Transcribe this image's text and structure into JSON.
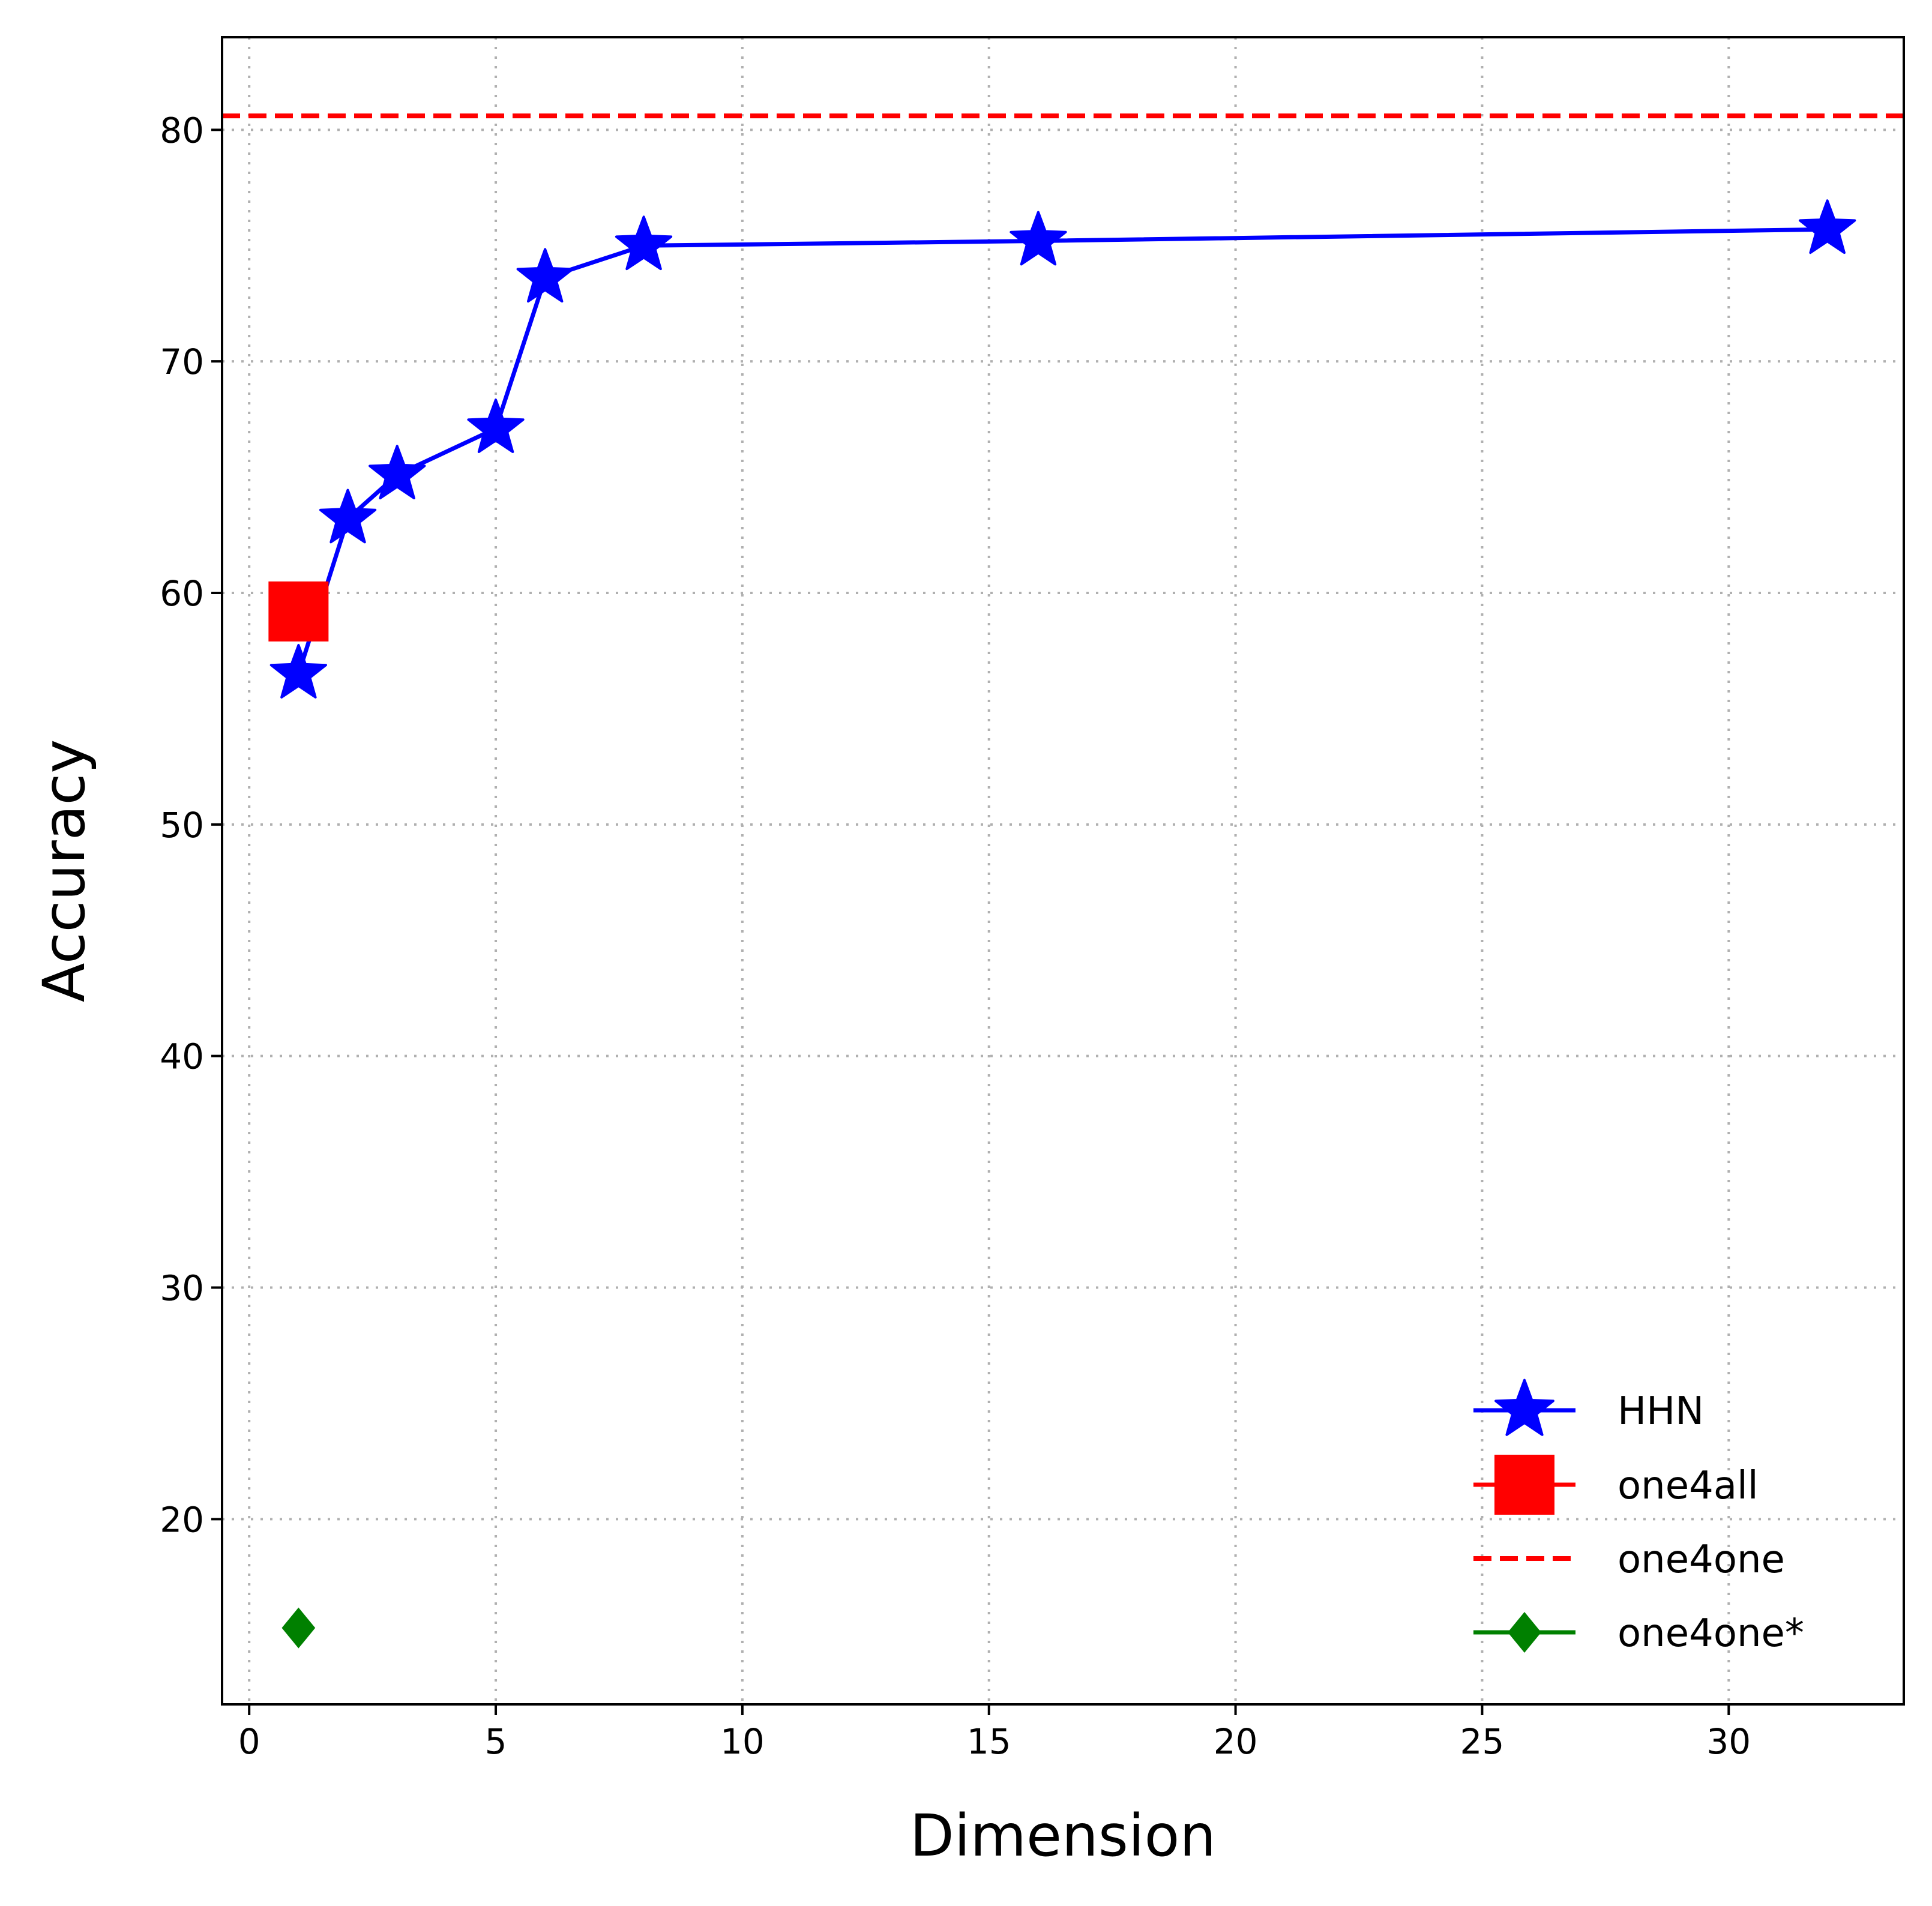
{
  "chart_data": {
    "type": "line",
    "title": "",
    "xlabel": "Dimension",
    "ylabel": "Accuracy",
    "xlim": [
      -0.55,
      33.55
    ],
    "ylim": [
      12,
      84
    ],
    "xticks": [
      0,
      5,
      10,
      15,
      20,
      25,
      30
    ],
    "yticks": [
      20,
      30,
      40,
      50,
      60,
      70,
      80
    ],
    "grid": true,
    "legend_position": "bottom-right",
    "series": [
      {
        "name": "HHN",
        "color": "#0000ff",
        "marker": "star",
        "x": [
          1,
          2,
          3,
          5,
          6,
          8,
          16,
          32
        ],
        "y": [
          56.5,
          63.2,
          65.1,
          67.1,
          73.6,
          75.0,
          75.2,
          75.7
        ]
      },
      {
        "name": "one4all",
        "color": "#ff0000",
        "marker": "square",
        "x": [
          1
        ],
        "y": [
          59.2
        ]
      },
      {
        "name": "one4one",
        "color": "#ff0000",
        "marker": "none",
        "style": "dashed-horizontal",
        "y": [
          80.6
        ]
      },
      {
        "name": "one4one*",
        "color": "#008000",
        "marker": "diamond",
        "x": [
          1
        ],
        "y": [
          15.3
        ]
      }
    ]
  }
}
